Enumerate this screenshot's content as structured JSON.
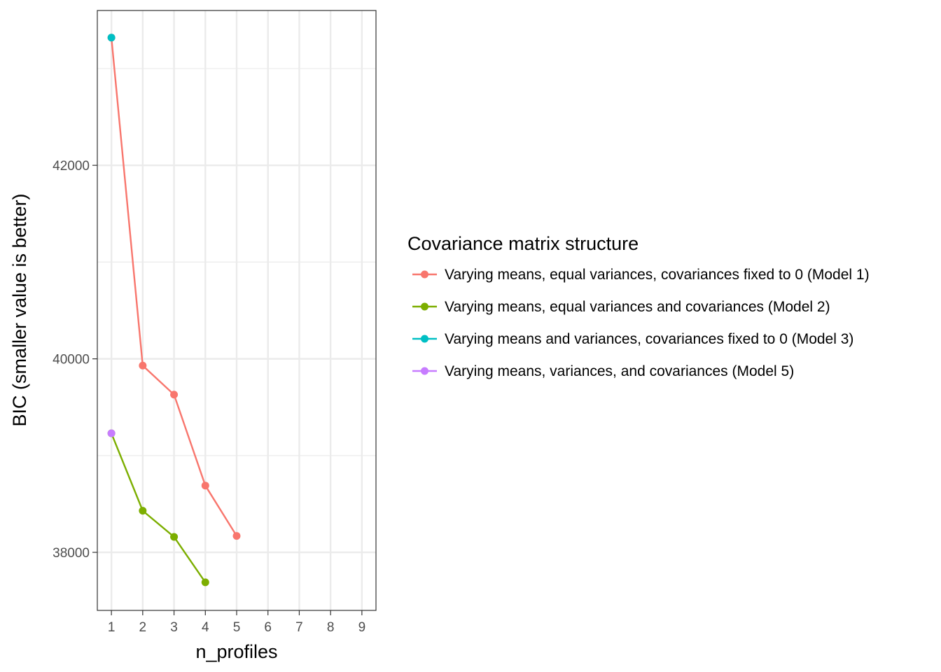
{
  "chart_data": {
    "type": "line",
    "xlabel": "n_profiles",
    "ylabel": "BIC (smaller value is better)",
    "x_ticks": [
      1,
      2,
      3,
      4,
      5,
      6,
      7,
      8,
      9
    ],
    "y_ticks": [
      38000,
      40000,
      42000
    ],
    "xlim": [
      0.55,
      9.45
    ],
    "ylim": [
      37400,
      43600
    ],
    "grid": true,
    "legend_position": "right",
    "legend_title": "Covariance matrix structure",
    "series": [
      {
        "name": "Varying means, equal variances, covariances fixed to 0 (Model 1)",
        "color": "#F8766D",
        "x": [
          1,
          2,
          3,
          4,
          5
        ],
        "y": [
          43320,
          39930,
          39630,
          38690,
          38170
        ]
      },
      {
        "name": "Varying means, equal variances and covariances (Model 2)",
        "color": "#7CAE00",
        "x": [
          1,
          2,
          3,
          4
        ],
        "y": [
          39230,
          38430,
          38160,
          37690
        ]
      },
      {
        "name": "Varying means and variances, covariances fixed to 0 (Model 3)",
        "color": "#00BFC4",
        "x": [
          1
        ],
        "y": [
          43320
        ]
      },
      {
        "name": "Varying means, variances, and covariances (Model 5)",
        "color": "#C77CFF",
        "x": [
          1
        ],
        "y": [
          39230
        ]
      }
    ]
  }
}
